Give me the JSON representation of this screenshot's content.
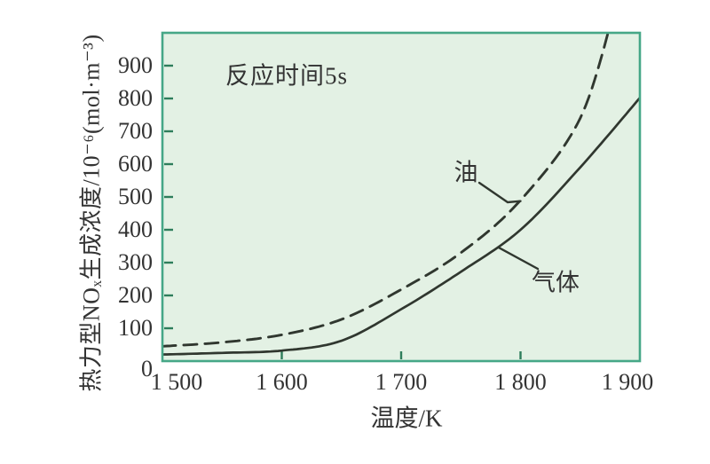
{
  "chart_data": {
    "type": "line",
    "annotation": "反应时间5s",
    "xlabel": "温度/K",
    "ylabel": "热力型NOₓ生成浓度/10⁻⁶(mol·m⁻³)",
    "xlim": [
      1500,
      1900
    ],
    "ylim": [
      0,
      1000
    ],
    "grid": false,
    "legend": "inline-curve-labels",
    "x_ticks": [
      {
        "value": 1500,
        "label": "1 500",
        "mark": false
      },
      {
        "value": 1600,
        "label": "1 600",
        "mark": true
      },
      {
        "value": 1700,
        "label": "1 700",
        "mark": true
      },
      {
        "value": 1800,
        "label": "1 800",
        "mark": true
      },
      {
        "value": 1900,
        "label": "1 900",
        "mark": false
      }
    ],
    "y_ticks": [
      {
        "value": 0,
        "label": "0",
        "mark": false
      },
      {
        "value": 100,
        "label": "100",
        "mark": true
      },
      {
        "value": 200,
        "label": "200",
        "mark": true
      },
      {
        "value": 300,
        "label": "300",
        "mark": true
      },
      {
        "value": 400,
        "label": "400",
        "mark": true
      },
      {
        "value": 500,
        "label": "500",
        "mark": true
      },
      {
        "value": 600,
        "label": "600",
        "mark": true
      },
      {
        "value": 700,
        "label": "700",
        "mark": true
      },
      {
        "value": 800,
        "label": "800",
        "mark": true
      },
      {
        "value": 900,
        "label": "900",
        "mark": true
      }
    ],
    "series": [
      {
        "name": "油",
        "line_style": "dashed",
        "points": [
          [
            1500,
            45
          ],
          [
            1550,
            57
          ],
          [
            1600,
            80
          ],
          [
            1650,
            127
          ],
          [
            1700,
            218
          ],
          [
            1750,
            330
          ],
          [
            1800,
            490
          ],
          [
            1850,
            740
          ],
          [
            1880,
            1090
          ]
        ]
      },
      {
        "name": "气体",
        "line_style": "solid",
        "points": [
          [
            1500,
            20
          ],
          [
            1550,
            25
          ],
          [
            1600,
            32
          ],
          [
            1650,
            62
          ],
          [
            1700,
            158
          ],
          [
            1750,
            272
          ],
          [
            1800,
            400
          ],
          [
            1850,
            590
          ],
          [
            1900,
            802
          ]
        ]
      }
    ],
    "colors": {
      "plot_bg": "#e3f1e4",
      "frame": "#46a787",
      "tick_mark": "#2e7d5b",
      "curve": "#30372f",
      "text": "#333333"
    }
  }
}
